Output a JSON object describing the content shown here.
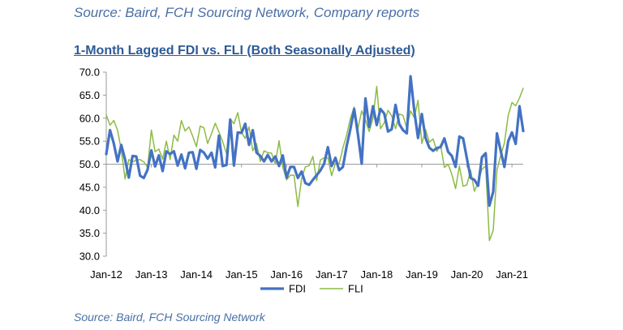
{
  "header": {
    "source_top": "Source: Baird, FCH Sourcing Network, Company reports",
    "source_bottom": "Source: Baird, FCH Sourcing Network"
  },
  "chart_data": {
    "type": "line",
    "title": "1-Month Lagged FDI vs. FLI (Both Seasonally Adjusted)",
    "xlabel": "",
    "ylabel": "",
    "ylim": [
      30,
      70
    ],
    "yticks": [
      "30.0",
      "35.0",
      "40.0",
      "45.0",
      "50.0",
      "55.0",
      "60.0",
      "65.0",
      "70.0"
    ],
    "xticks": [
      "Jan-12",
      "Jan-13",
      "Jan-14",
      "Jan-15",
      "Jan-16",
      "Jan-17",
      "Jan-18",
      "Jan-19",
      "Jan-20",
      "Jan-21"
    ],
    "x_start": "Jan-12",
    "x_frequency": "monthly",
    "legend_position": "bottom",
    "colors": {
      "FDI": "#4472c4",
      "FLI": "#8dbb45"
    },
    "series": [
      {
        "name": "FDI",
        "values": [
          52.2,
          57.4,
          54.5,
          50.6,
          54.2,
          51.0,
          47.1,
          51.8,
          51.7,
          47.5,
          47.0,
          48.8,
          53.0,
          49.5,
          51.9,
          48.5,
          52.8,
          52.2,
          52.8,
          49.7,
          52.1,
          49.1,
          52.5,
          52.6,
          49.0,
          53.1,
          52.5,
          51.2,
          52.5,
          49.3,
          56.2,
          49.6,
          49.8,
          59.7,
          49.7,
          56.9,
          56.8,
          58.8,
          54.2,
          57.4,
          52.5,
          51.8,
          50.6,
          52.0,
          50.6,
          51.7,
          49.6,
          51.9,
          47.1,
          49.4,
          49.4,
          47.0,
          48.4,
          45.9,
          45.5,
          46.6,
          47.6,
          48.6,
          50.1,
          53.7,
          49.6,
          51.4,
          48.7,
          49.4,
          54.0,
          57.7,
          62.0,
          56.4,
          50.1,
          64.3,
          58.1,
          62.6,
          58.5,
          62.0,
          61.0,
          57.1,
          57.6,
          62.9,
          58.7,
          57.4,
          56.7,
          69.1,
          61.6,
          55.7,
          60.9,
          55.7,
          53.6,
          52.9,
          53.5,
          53.7,
          55.6,
          52.7,
          51.8,
          49.4,
          56.0,
          55.6,
          51.3,
          47.0,
          46.6,
          45.3,
          51.5,
          52.4,
          41.0,
          44.0,
          56.7,
          52.9,
          49.4,
          55.0,
          56.9,
          54.4,
          62.6,
          57.2
        ]
      },
      {
        "name": "FLI",
        "values": [
          60.7,
          58.5,
          59.5,
          57.4,
          53.1,
          46.8,
          51.0,
          50.5,
          50.9,
          51.0,
          50.5,
          49.3,
          57.4,
          52.7,
          53.3,
          51.1,
          55.0,
          51.0,
          56.3,
          55.0,
          59.5,
          57.2,
          58.1,
          56.1,
          53.8,
          58.3,
          57.9,
          54.5,
          56.6,
          58.9,
          57.0,
          54.9,
          52.3,
          59.8,
          58.8,
          61.2,
          56.9,
          55.6,
          58.1,
          52.9,
          54.5,
          50.6,
          52.9,
          52.5,
          52.4,
          50.1,
          55.1,
          49.3,
          46.6,
          47.6,
          47.6,
          40.8,
          46.9,
          49.4,
          49.7,
          51.7,
          46.4,
          50.9,
          51.4,
          51.4,
          47.5,
          50.2,
          50.1,
          53.5,
          56.4,
          60.0,
          62.4,
          57.8,
          61.6,
          59.6,
          57.1,
          60.0,
          66.9,
          57.7,
          59.0,
          61.7,
          60.5,
          57.7,
          60.9,
          60.6,
          57.8,
          61.6,
          60.1,
          63.9,
          54.5,
          57.5,
          54.8,
          55.5,
          52.8,
          54.2,
          49.3,
          50.0,
          47.8,
          44.7,
          49.6,
          45.2,
          45.5,
          48.7,
          44.1,
          46.1,
          48.9,
          49.6,
          33.4,
          35.6,
          48.7,
          51.9,
          54.6,
          60.6,
          63.4,
          62.7,
          64.4,
          66.5
        ]
      }
    ]
  }
}
